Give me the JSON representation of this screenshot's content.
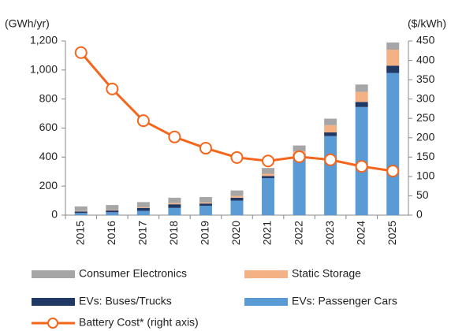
{
  "chart_data": {
    "type": "bar",
    "y_label": "(GWh/yr)",
    "y2_label": "($/kWh)",
    "categories": [
      "2015",
      "2016",
      "2017",
      "2018",
      "2019",
      "2020",
      "2021",
      "2022",
      "2023",
      "2024",
      "2025"
    ],
    "series": [
      {
        "name": "Consumer Electronics",
        "color": "#a6a6a6",
        "values": [
          32,
          35,
          35,
          37,
          37,
          38,
          40,
          40,
          45,
          50,
          50
        ]
      },
      {
        "name": "Static Storage",
        "color": "#f4b183",
        "values": [
          3,
          3,
          5,
          8,
          8,
          12,
          15,
          20,
          50,
          70,
          110
        ]
      },
      {
        "name": "EVs: Buses/Trucks",
        "color": "#1f3864",
        "values": [
          10,
          12,
          20,
          25,
          15,
          20,
          15,
          20,
          25,
          35,
          50
        ]
      },
      {
        "name": "EVs: Passenger Cars",
        "color": "#5b9bd5",
        "values": [
          15,
          20,
          30,
          50,
          65,
          100,
          255,
          400,
          545,
          745,
          980
        ]
      },
      {
        "name": "Battery Cost* (right axis)",
        "color": "#f4661b",
        "type": "line",
        "axis": "y2",
        "values": [
          420,
          326,
          244,
          202,
          173,
          149,
          140,
          151,
          143,
          126,
          114
        ]
      }
    ],
    "ylim": [
      0,
      1200
    ],
    "yticks": [
      0,
      200,
      400,
      600,
      800,
      {
        "value": 1000,
        "label": "1,000"
      },
      {
        "value": 1200,
        "label": "1,200"
      }
    ],
    "y2lim": [
      0,
      450
    ],
    "y2ticks": [
      0,
      50,
      100,
      150,
      200,
      250,
      300,
      350,
      400,
      450
    ],
    "stacked": true,
    "grid": false,
    "legend": "bottom"
  }
}
